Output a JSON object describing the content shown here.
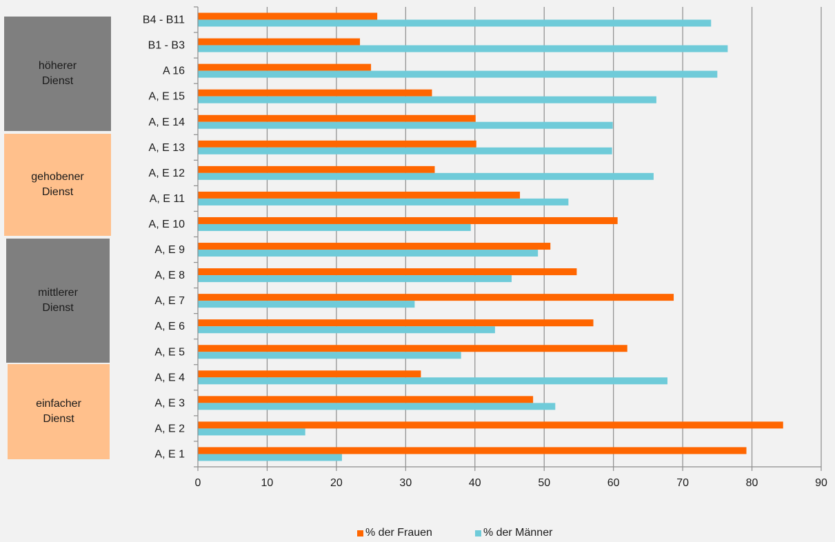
{
  "groups": [
    {
      "label": "höherer\nDienst",
      "color": "#7f7f7f"
    },
    {
      "label": "gehobener\nDienst",
      "color": "#ffc08c"
    },
    {
      "label": "mittlerer\nDienst",
      "color": "#7f7f7f"
    },
    {
      "label": "einfacher\nDienst",
      "color": "#ffc08c"
    }
  ],
  "chart_data": {
    "type": "bar",
    "orientation": "horizontal",
    "categories": [
      "B4 - B11",
      "B1 - B3",
      "A 16",
      "A, E 15",
      "A, E 14",
      "A, E 13",
      "A, E 12",
      "A, E 11",
      "A, E 10",
      "A, E 9",
      "A, E 8",
      "A, E 7",
      "A, E 6",
      "A, E 5",
      "A, E 4",
      "A, E 3",
      "A, E 2",
      "A, E 1"
    ],
    "series": [
      {
        "name": "% der Frauen",
        "color": "#ff6600",
        "values": [
          25.9,
          23.4,
          25.0,
          33.8,
          40.1,
          40.2,
          34.2,
          46.5,
          60.6,
          50.9,
          54.7,
          68.7,
          57.1,
          62.0,
          32.2,
          48.4,
          84.5,
          79.2
        ]
      },
      {
        "name": "% der Männer",
        "color": "#6fcbd9",
        "values": [
          74.1,
          76.5,
          75.0,
          66.2,
          59.9,
          59.8,
          65.8,
          53.5,
          39.4,
          49.1,
          45.3,
          31.3,
          42.9,
          38.0,
          67.8,
          51.6,
          15.5,
          20.8
        ]
      }
    ],
    "xlim": [
      0,
      90
    ],
    "xticks": [
      0,
      10,
      20,
      30,
      40,
      50,
      60,
      70,
      80,
      90
    ],
    "grid": "vertical",
    "legend": "bottom",
    "title": "",
    "xlabel": "",
    "ylabel": ""
  }
}
